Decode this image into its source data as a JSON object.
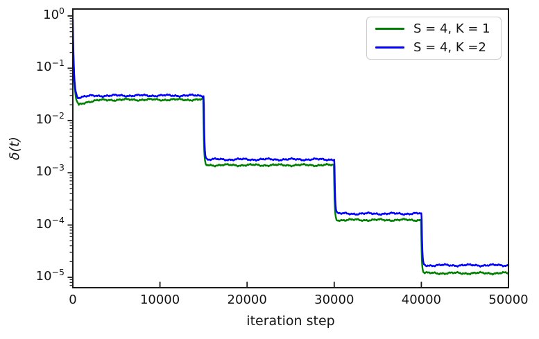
{
  "chart_data": {
    "type": "line",
    "title": "",
    "xlabel": "iteration step",
    "ylabel": "δ(t)",
    "xscale": "linear",
    "yscale": "log",
    "xlim": [
      0,
      50000
    ],
    "ylim": [
      6.3e-06,
      1.35
    ],
    "xticks": [
      0,
      10000,
      20000,
      30000,
      40000,
      50000
    ],
    "ytick_exponents": [
      0,
      -1,
      -2,
      -3,
      -4,
      -5
    ],
    "grid": false,
    "frame_color": "#1a1a1a",
    "text_color": "#141414",
    "background_color": "#ffffff",
    "legend": {
      "position": "upper right",
      "border_color": "#cccccc"
    },
    "drop_times": [
      15000,
      30000,
      40000
    ],
    "series": [
      {
        "name": "S = 4, K = 1",
        "color": "#008000",
        "start_value": 0.55,
        "dip": {
          "t": 650,
          "value": 0.0195
        },
        "plateau_values": [
          0.025,
          0.0014,
          0.000125,
          1.2e-05
        ],
        "drop_time_offset": -30
      },
      {
        "name": "S = 4, K =2",
        "color": "#0000ff",
        "start_value": 0.85,
        "dip": {
          "t": 550,
          "value": 0.0275
        },
        "plateau_values": [
          0.03,
          0.0018,
          0.000165,
          1.7e-05
        ],
        "drop_time_offset": 30
      }
    ],
    "noise_amplitude_decades": 0.02
  }
}
